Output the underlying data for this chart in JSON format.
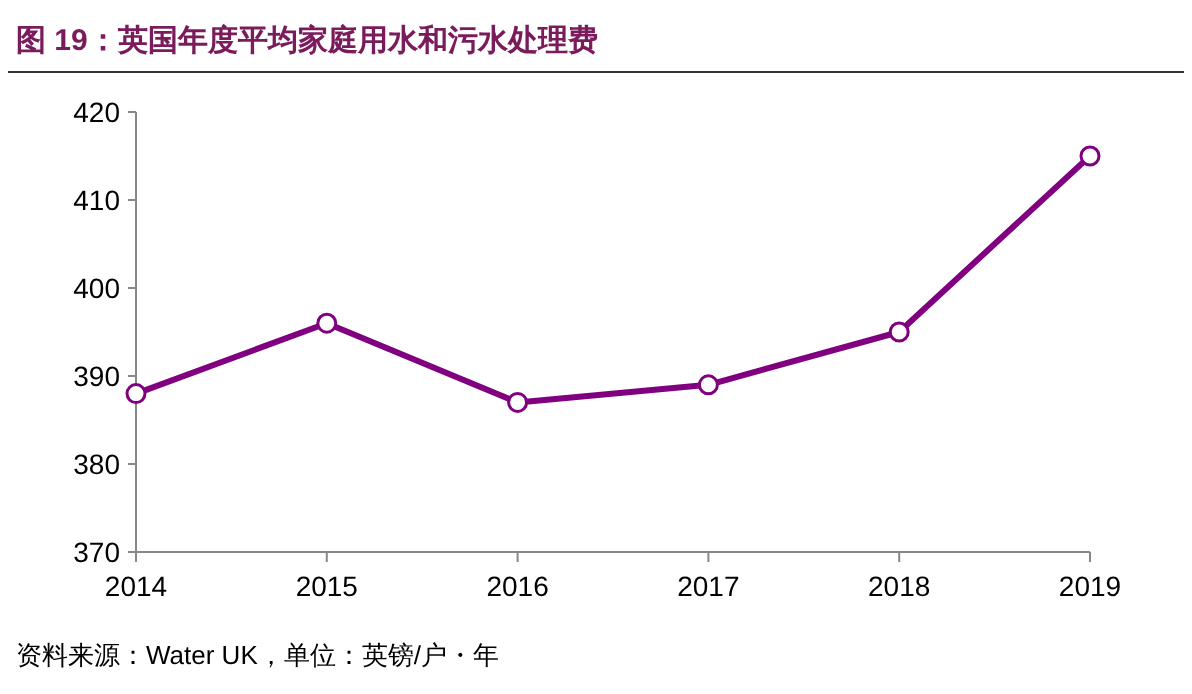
{
  "chart_data": {
    "type": "line",
    "title": "图 19：英国年度平均家庭用水和污水处理费",
    "x": [
      2014,
      2015,
      2016,
      2017,
      2018,
      2019
    ],
    "values": [
      388,
      396,
      387,
      389,
      395,
      415
    ],
    "color": "#800080",
    "marker": "circle",
    "grid": false,
    "xlim": [
      2014,
      2019
    ],
    "ylim": [
      370,
      420
    ],
    "xticks": [
      2014,
      2015,
      2016,
      2017,
      2018,
      2019
    ],
    "yticks": [
      370,
      380,
      390,
      400,
      410,
      420
    ],
    "annotations": [
      "资料来源：Water UK，单位：英镑/户・年"
    ]
  }
}
